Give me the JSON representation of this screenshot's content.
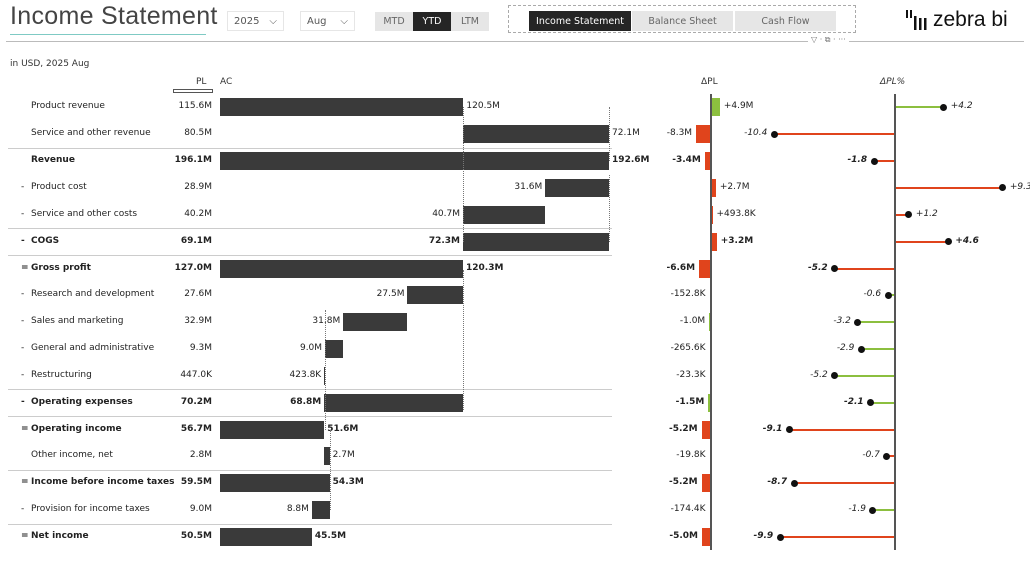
{
  "header": {
    "title": "Income Statement",
    "year": "2025",
    "month": "Aug",
    "periods": [
      {
        "label": "MTD",
        "active": false
      },
      {
        "label": "YTD",
        "active": true
      },
      {
        "label": "LTM",
        "active": false
      }
    ],
    "nav": [
      {
        "label": "Income Statement",
        "active": true
      },
      {
        "label": "Balance Sheet",
        "active": false
      },
      {
        "label": "Cash Flow",
        "active": false
      }
    ],
    "logo": "zebra bi",
    "visual_icons": "▽ · ⧉ · ···"
  },
  "subtitle": "in USD, 2025 Aug",
  "columns": {
    "pl": "PL",
    "ac": "AC",
    "dpl": "ΔPL",
    "dplpct": "ΔPL%"
  },
  "colors": {
    "bar": "#3a3a3a",
    "positive": "#8cbf3f",
    "negative": "#e0441c"
  },
  "rows": [
    {
      "prefix": "",
      "label": "Product revenue",
      "type": "plus",
      "bold": false,
      "pl": "115.6M",
      "ac": "120.5M",
      "ac_value": 120.5,
      "dpl": "+4.9M",
      "dpl_value": 4.9,
      "dplpct": "+4.2",
      "dplpct_value": 4.2
    },
    {
      "prefix": "",
      "label": "Service and other revenue",
      "type": "plus",
      "bold": false,
      "pl": "80.5M",
      "ac": "72.1M",
      "ac_value": 72.1,
      "dpl": "-8.3M",
      "dpl_value": -8.3,
      "dplpct": "-10.4",
      "dplpct_value": -10.4
    },
    {
      "prefix": "",
      "label": "Revenue",
      "type": "total",
      "bold": true,
      "pl": "196.1M",
      "ac": "192.6M",
      "ac_value": 192.6,
      "dpl": "-3.4M",
      "dpl_value": -3.4,
      "dplpct": "-1.8",
      "dplpct_value": -1.8
    },
    {
      "prefix": "-",
      "label": "Product cost",
      "type": "minus",
      "bold": false,
      "pl": "28.9M",
      "ac": "31.6M",
      "ac_value": 31.6,
      "dpl": "+2.7M",
      "dpl_value": 2.7,
      "dplpct": "+9.3",
      "dplpct_value": 9.3,
      "inverted": true
    },
    {
      "prefix": "-",
      "label": "Service and other costs",
      "type": "minus",
      "bold": false,
      "pl": "40.2M",
      "ac": "40.7M",
      "ac_value": 40.7,
      "dpl": "+493.8K",
      "dpl_value": 0.49,
      "dplpct": "+1.2",
      "dplpct_value": 1.2,
      "inverted": true
    },
    {
      "prefix": "-",
      "label": "COGS",
      "type": "subtotal",
      "bold": true,
      "pl": "69.1M",
      "ac": "72.3M",
      "ac_value": 72.3,
      "dpl": "+3.2M",
      "dpl_value": 3.2,
      "dplpct": "+4.6",
      "dplpct_value": 4.6,
      "inverted": true
    },
    {
      "prefix": "=",
      "label": "Gross profit",
      "type": "total",
      "bold": true,
      "pl": "127.0M",
      "ac": "120.3M",
      "ac_value": 120.3,
      "dpl": "-6.6M",
      "dpl_value": -6.6,
      "dplpct": "-5.2",
      "dplpct_value": -5.2
    },
    {
      "prefix": "-",
      "label": "Research and development",
      "type": "minus",
      "bold": false,
      "pl": "27.6M",
      "ac": "27.5M",
      "ac_value": 27.5,
      "dpl": "-152.8K",
      "dpl_value": -0.15,
      "dplpct": "-0.6",
      "dplpct_value": -0.6,
      "inverted": true
    },
    {
      "prefix": "-",
      "label": "Sales and marketing",
      "type": "minus",
      "bold": false,
      "pl": "32.9M",
      "ac": "31.8M",
      "ac_value": 31.8,
      "dpl": "-1.0M",
      "dpl_value": -1.0,
      "dplpct": "-3.2",
      "dplpct_value": -3.2,
      "inverted": true
    },
    {
      "prefix": "-",
      "label": "General and administrative",
      "type": "minus",
      "bold": false,
      "pl": "9.3M",
      "ac": "9.0M",
      "ac_value": 9.0,
      "dpl": "-265.6K",
      "dpl_value": -0.27,
      "dplpct": "-2.9",
      "dplpct_value": -2.9,
      "inverted": true
    },
    {
      "prefix": "-",
      "label": "Restructuring",
      "type": "minus",
      "bold": false,
      "pl": "447.0K",
      "ac": "423.8K",
      "ac_value": 0.42,
      "dpl": "-23.3K",
      "dpl_value": -0.02,
      "dplpct": "-5.2",
      "dplpct_value": -5.2,
      "inverted": true
    },
    {
      "prefix": "-",
      "label": "Operating expenses",
      "type": "subtotal",
      "bold": true,
      "pl": "70.2M",
      "ac": "68.8M",
      "ac_value": 68.8,
      "dpl": "-1.5M",
      "dpl_value": -1.5,
      "dplpct": "-2.1",
      "dplpct_value": -2.1,
      "inverted": true
    },
    {
      "prefix": "=",
      "label": "Operating income",
      "type": "total",
      "bold": true,
      "pl": "56.7M",
      "ac": "51.6M",
      "ac_value": 51.6,
      "dpl": "-5.2M",
      "dpl_value": -5.2,
      "dplpct": "-9.1",
      "dplpct_value": -9.1
    },
    {
      "prefix": "",
      "label": "Other income, net",
      "type": "plus",
      "bold": false,
      "pl": "2.8M",
      "ac": "2.7M",
      "ac_value": 2.7,
      "dpl": "-19.8K",
      "dpl_value": -0.02,
      "dplpct": "-0.7",
      "dplpct_value": -0.7
    },
    {
      "prefix": "=",
      "label": "Income before income taxes",
      "type": "total",
      "bold": true,
      "pl": "59.5M",
      "ac": "54.3M",
      "ac_value": 54.3,
      "dpl": "-5.2M",
      "dpl_value": -5.2,
      "dplpct": "-8.7",
      "dplpct_value": -8.7
    },
    {
      "prefix": "-",
      "label": "Provision for income taxes",
      "type": "minus",
      "bold": false,
      "pl": "9.0M",
      "ac": "8.8M",
      "ac_value": 8.8,
      "dpl": "-174.4K",
      "dpl_value": -0.17,
      "dplpct": "-1.9",
      "dplpct_value": -1.9,
      "inverted": true
    },
    {
      "prefix": "=",
      "label": "Net income",
      "type": "total",
      "bold": true,
      "pl": "50.5M",
      "ac": "45.5M",
      "ac_value": 45.5,
      "dpl": "-5.0M",
      "dpl_value": -5.0,
      "dplpct": "-9.9",
      "dplpct_value": -9.9
    }
  ]
}
